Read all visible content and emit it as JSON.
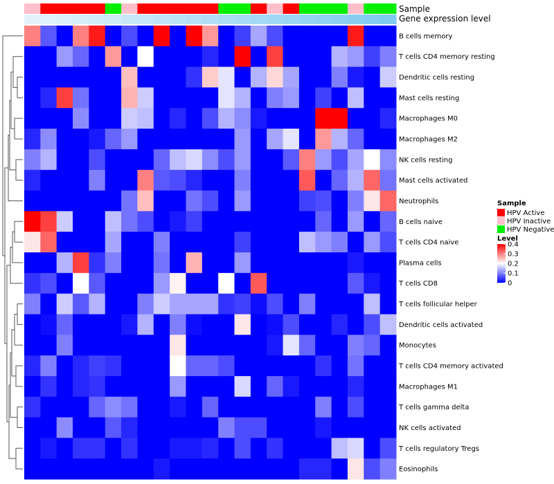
{
  "chart_data": {
    "type": "heatmap",
    "title": "",
    "annotations": {
      "sample_title": "Sample",
      "expression_title": "Gene expression level"
    },
    "rows": [
      "B cells memory",
      "T cells CD4 memory resting",
      "Dendritic cells resting",
      "Mast cells resting",
      "Macrophages M0",
      "Macrophages M2",
      "NK cells resting",
      "Mast cells activated",
      "Neutrophils",
      "B cells naive",
      "T cells CD4 naive",
      "Plasma cells",
      "T cells CD8",
      "T cells follicular helper",
      "Dendritic cells activated",
      "Monocytes",
      "T cells CD4 memory activated",
      "Macrophages M1",
      "T cells gamma delta",
      "NK cells activated",
      "T cells regulatory  Tregs",
      "Eosinophils"
    ],
    "sample_groups": [
      "HPV Inactive",
      "HPV Active",
      "HPV Active",
      "HPV Active",
      "HPV Active",
      "HPV Negative",
      "HPV Inactive",
      "HPV Active",
      "HPV Active",
      "HPV Active",
      "HPV Active",
      "HPV Active",
      "HPV Negative",
      "HPV Negative",
      "HPV Active",
      "HPV Inactive",
      "HPV Active",
      "HPV Negative",
      "HPV Negative",
      "HPV Negative",
      "HPV Inactive",
      "HPV Negative",
      "HPV Negative"
    ],
    "expression_level": [
      0.02,
      0.06,
      0.1,
      0.14,
      0.18,
      0.22,
      0.26,
      0.3,
      0.34,
      0.38,
      0.42,
      0.46,
      0.5,
      0.54,
      0.58,
      0.62,
      0.66,
      0.7,
      0.74,
      0.78,
      0.82,
      0.86,
      0.9
    ],
    "values": [
      [
        0.3,
        0.07,
        0.0,
        0.3,
        0.38,
        0.0,
        0.06,
        0.0,
        0.4,
        0.0,
        0.4,
        0.28,
        0.0,
        0.05,
        0.13,
        0.06,
        0.0,
        0.0,
        0.0,
        0.0,
        0.38,
        0.0,
        0.0
      ],
      [
        0.0,
        0.0,
        0.12,
        0.08,
        0.0,
        0.28,
        0.0,
        0.2,
        0.0,
        0.0,
        0.0,
        0.03,
        0.0,
        0.4,
        0.0,
        0.35,
        0.0,
        0.0,
        0.0,
        0.14,
        0.12,
        0.05,
        0.1
      ],
      [
        0.0,
        0.0,
        0.0,
        0.0,
        0.0,
        0.0,
        0.25,
        0.0,
        0.0,
        0.0,
        0.04,
        0.24,
        0.18,
        0.0,
        0.14,
        0.23,
        0.13,
        0.0,
        0.0,
        0.1,
        0.02,
        0.0,
        0.16
      ],
      [
        0.0,
        0.03,
        0.35,
        0.09,
        0.0,
        0.0,
        0.26,
        0.16,
        0.0,
        0.0,
        0.0,
        0.0,
        0.18,
        0.14,
        0.0,
        0.1,
        0.12,
        0.0,
        0.05,
        0.0,
        0.15,
        0.0,
        0.0
      ],
      [
        0.0,
        0.0,
        0.0,
        0.11,
        0.0,
        0.0,
        0.16,
        0.15,
        0.0,
        0.03,
        0.0,
        0.06,
        0.14,
        0.11,
        0.02,
        0.0,
        0.0,
        0.0,
        0.4,
        0.4,
        0.0,
        0.0,
        0.03
      ],
      [
        0.03,
        0.11,
        0.0,
        0.0,
        0.02,
        0.08,
        0.12,
        0.0,
        0.0,
        0.0,
        0.0,
        0.0,
        0.0,
        0.12,
        0.0,
        0.13,
        0.18,
        0.0,
        0.28,
        0.14,
        0.08,
        0.0,
        0.0
      ],
      [
        0.1,
        0.14,
        0.0,
        0.0,
        0.06,
        0.0,
        0.0,
        0.0,
        0.08,
        0.15,
        0.17,
        0.11,
        0.06,
        0.12,
        0.0,
        0.0,
        0.07,
        0.3,
        0.12,
        0.06,
        0.13,
        0.2,
        0.11
      ],
      [
        0.03,
        0.0,
        0.0,
        0.0,
        0.1,
        0.0,
        0.0,
        0.3,
        0.07,
        0.06,
        0.03,
        0.0,
        0.0,
        0.1,
        0.0,
        0.0,
        0.0,
        0.33,
        0.0,
        0.08,
        0.14,
        0.32,
        0.09
      ],
      [
        0.0,
        0.0,
        0.0,
        0.0,
        0.0,
        0.0,
        0.09,
        0.25,
        0.0,
        0.0,
        0.09,
        0.06,
        0.0,
        0.12,
        0.0,
        0.0,
        0.0,
        0.05,
        0.06,
        0.0,
        0.1,
        0.22,
        0.32
      ],
      [
        0.4,
        0.35,
        0.16,
        0.0,
        0.0,
        0.15,
        0.09,
        0.06,
        0.0,
        0.02,
        0.05,
        0.0,
        0.0,
        0.0,
        0.0,
        0.0,
        0.0,
        0.0,
        0.08,
        0.0,
        0.12,
        0.0,
        0.08
      ],
      [
        0.22,
        0.32,
        0.0,
        0.0,
        0.0,
        0.13,
        0.0,
        0.0,
        0.1,
        0.0,
        0.0,
        0.0,
        0.0,
        0.05,
        0.0,
        0.0,
        0.0,
        0.15,
        0.12,
        0.1,
        0.0,
        0.12,
        0.06
      ],
      [
        0.0,
        0.0,
        0.14,
        0.35,
        0.04,
        0.1,
        0.0,
        0.0,
        0.09,
        0.0,
        0.26,
        0.0,
        0.0,
        0.12,
        0.0,
        0.0,
        0.0,
        0.0,
        0.0,
        0.0,
        0.02,
        0.0,
        0.0
      ],
      [
        0.04,
        0.06,
        0.0,
        0.2,
        0.07,
        0.0,
        0.0,
        0.0,
        0.12,
        0.21,
        0.0,
        0.0,
        0.2,
        0.0,
        0.33,
        0.0,
        0.0,
        0.0,
        0.0,
        0.0,
        0.07,
        0.02,
        0.0
      ],
      [
        0.1,
        0.0,
        0.16,
        0.07,
        0.14,
        0.0,
        0.0,
        0.1,
        0.16,
        0.13,
        0.13,
        0.13,
        0.04,
        0.05,
        0.01,
        0.06,
        0.0,
        0.1,
        0.0,
        0.0,
        0.0,
        0.15,
        0.0
      ],
      [
        0.0,
        0.01,
        0.08,
        0.0,
        0.0,
        0.0,
        0.02,
        0.14,
        0.0,
        0.1,
        0.01,
        0.0,
        0.0,
        0.22,
        0.0,
        0.01,
        0.06,
        0.0,
        0.0,
        0.03,
        0.0,
        0.06,
        0.15
      ],
      [
        0.0,
        0.0,
        0.1,
        0.0,
        0.0,
        0.0,
        0.0,
        0.0,
        0.0,
        0.22,
        0.0,
        0.0,
        0.0,
        0.0,
        0.0,
        0.02,
        0.18,
        0.08,
        0.0,
        0.0,
        0.1,
        0.08,
        0.0
      ],
      [
        0.03,
        0.1,
        0.0,
        0.03,
        0.05,
        0.04,
        0.0,
        0.0,
        0.0,
        0.2,
        0.08,
        0.08,
        0.06,
        0.0,
        0.0,
        0.0,
        0.0,
        0.0,
        0.04,
        0.0,
        0.09,
        0.0,
        0.0
      ],
      [
        0.0,
        0.04,
        0.0,
        0.03,
        0.04,
        0.0,
        0.0,
        0.0,
        0.0,
        0.12,
        0.0,
        0.0,
        0.0,
        0.17,
        0.0,
        0.08,
        0.02,
        0.0,
        0.0,
        0.0,
        0.03,
        0.0,
        0.0
      ],
      [
        0.04,
        0.0,
        0.0,
        0.0,
        0.08,
        0.11,
        0.09,
        0.0,
        0.0,
        0.02,
        0.0,
        0.08,
        0.0,
        0.0,
        0.0,
        0.0,
        0.0,
        0.0,
        0.1,
        0.0,
        0.06,
        0.0,
        0.0
      ],
      [
        0.0,
        0.0,
        0.11,
        0.0,
        0.0,
        0.07,
        0.03,
        0.0,
        0.0,
        0.0,
        0.0,
        0.0,
        0.1,
        0.06,
        0.06,
        0.0,
        0.0,
        0.0,
        0.02,
        0.0,
        0.0,
        0.0,
        0.0
      ],
      [
        0.0,
        0.02,
        0.0,
        0.04,
        0.04,
        0.0,
        0.04,
        0.0,
        0.0,
        0.02,
        0.02,
        0.03,
        0.0,
        0.06,
        0.0,
        0.04,
        0.0,
        0.0,
        0.0,
        0.15,
        0.17,
        0.0,
        0.06
      ],
      [
        0.0,
        0.0,
        0.0,
        0.0,
        0.0,
        0.0,
        0.0,
        0.0,
        0.02,
        0.0,
        0.0,
        0.0,
        0.0,
        0.0,
        0.0,
        0.0,
        0.0,
        0.03,
        0.03,
        0.0,
        0.22,
        0.06,
        0.1
      ]
    ],
    "legend": {
      "sample_title": "Sample",
      "sample_items": [
        {
          "label": "HPV Active",
          "color": "#ff0000"
        },
        {
          "label": "HPV Inactive",
          "color": "#ffc0cb"
        },
        {
          "label": "HPV Negative",
          "color": "#00ee00"
        }
      ],
      "level_title": "Level",
      "level_ticks": [
        "0.4",
        "0.3",
        "0.2",
        "0.1",
        "0"
      ],
      "level_tick_values": [
        0.4,
        0.3,
        0.2,
        0.1,
        0
      ],
      "level_range": [
        0,
        0.4
      ]
    },
    "colors": {
      "low": "#0000ff",
      "mid": "#ffffff",
      "high": "#ff0000",
      "mid_value": 0.2,
      "expr_low": "#e6f4fb",
      "expr_high": "#74c6ef"
    }
  }
}
